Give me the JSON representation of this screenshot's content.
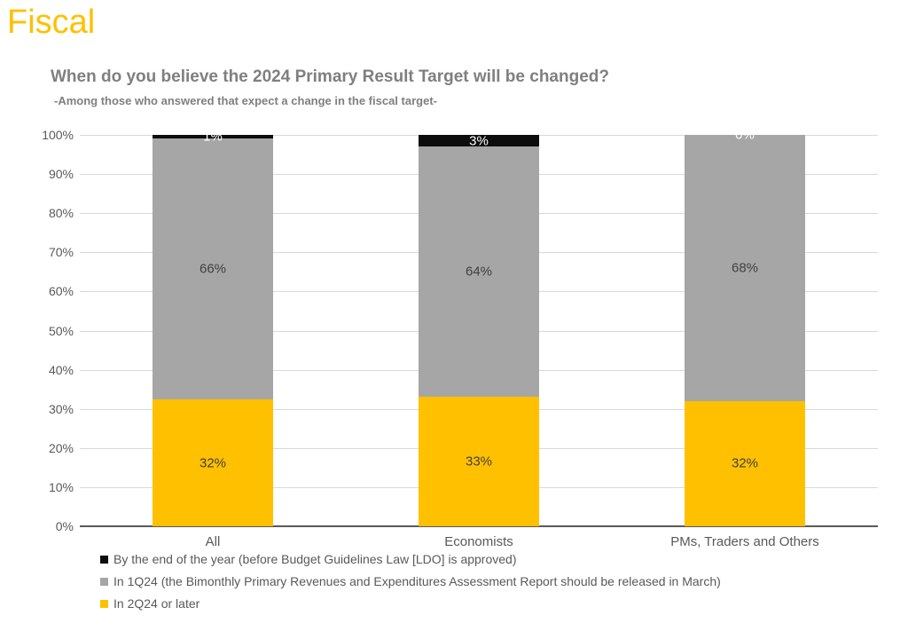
{
  "page": {
    "heading": "Fiscal",
    "heading_color": "#FFC000"
  },
  "chart_data": {
    "type": "bar",
    "stacked": true,
    "normalized_to_100": true,
    "title": "When do you believe the 2024 Primary Result Target will be changed?",
    "subtitle": "-Among those who answered that expect a change in the fiscal target-",
    "title_color": "#7F7F7F",
    "categories": [
      "All",
      "Economists",
      "PMs, Traders and Others"
    ],
    "series": [
      {
        "name": "By the end of the year (before Budget Guidelines Law [LDO] is approved)",
        "color": "#0D0D0D",
        "label_color": "#FFFFFF",
        "values": [
          1,
          3,
          0
        ]
      },
      {
        "name": "In 1Q24 (the Bimonthly Primary Revenues and Expenditures Assessment Report should be released in March)",
        "color": "#A6A6A6",
        "label_color": "#404040",
        "values": [
          66,
          64,
          68
        ]
      },
      {
        "name": "In 2Q24 or later",
        "color": "#FFC000",
        "label_color": "#404040",
        "values": [
          32,
          33,
          32
        ]
      }
    ],
    "value_suffix": "%",
    "y_ticks": [
      "100%",
      "90%",
      "80%",
      "70%",
      "60%",
      "50%",
      "40%",
      "30%",
      "20%",
      "10%",
      "0%"
    ],
    "ylim": [
      0,
      100
    ],
    "grid": true,
    "gridline_color": "#D9D9D9",
    "axis_text_color": "#595959",
    "legend_position": "bottom"
  }
}
